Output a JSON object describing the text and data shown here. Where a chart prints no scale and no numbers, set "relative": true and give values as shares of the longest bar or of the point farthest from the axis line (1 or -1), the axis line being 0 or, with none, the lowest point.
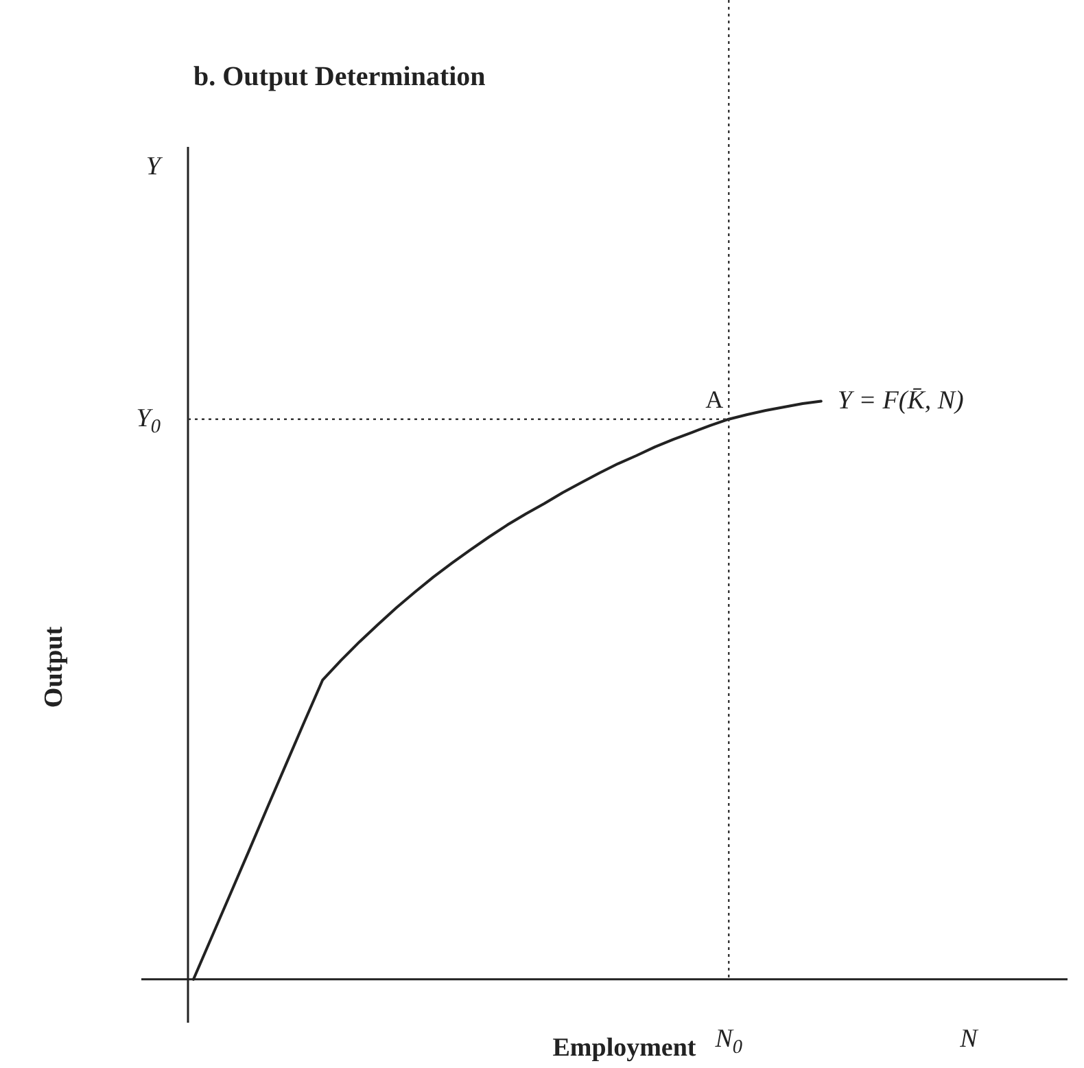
{
  "chart_data": {
    "type": "line",
    "title": "b. Output Determination",
    "xlabel": "Employment",
    "ylabel": "Output",
    "relative": true,
    "categories": [
      null,
      null,
      null,
      null,
      null,
      null,
      null,
      null,
      null,
      null,
      null,
      null,
      null,
      null,
      null,
      null,
      null,
      null,
      null,
      null,
      null,
      null,
      null,
      null,
      null,
      null,
      null,
      null,
      null,
      "N$_{0}$",
      null,
      null,
      null,
      null,
      null,
      null,
      null,
      null,
      null,
      null,
      null,
      null,
      "N"
    ],
    "series": [
      {
        "name": "Y = F(K̄, N)",
        "color": "#222222",
        "values": [
          0,
          0.074,
          0.148,
          0.222,
          0.297,
          0.371,
          0.445,
          0.518,
          0.552,
          0.584,
          0.614,
          0.643,
          0.67,
          0.696,
          0.72,
          0.743,
          0.765,
          0.786,
          0.805,
          0.823,
          0.842,
          0.859,
          0.876,
          0.892,
          0.906,
          0.921,
          0.934,
          0.946,
          0.958,
          0.969,
          0.977,
          0.984,
          0.99,
          0.996,
          1,
          null,
          null,
          null,
          null,
          null,
          null,
          null,
          null
        ]
      }
    ],
    "ref_lines": [
      {
        "axis": "x",
        "value": "N$_{0}$",
        "label": null,
        "line_style": "dotted"
      },
      {
        "axis": "y",
        "value": 0.969,
        "label": "Y$_{0}$",
        "line_style": "dotted"
      }
    ],
    "annotations": [
      {
        "text": "A",
        "x": "N$_{0}$",
        "y": 0.969
      },
      "Y"
    ],
    "grid": false,
    "legend": false,
    "marker": "none",
    "line_style": "solid"
  }
}
